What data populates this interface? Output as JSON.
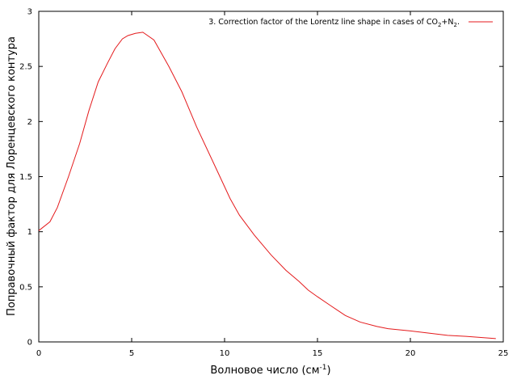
{
  "chart_data": {
    "type": "line",
    "title": "",
    "xlabel": "Волновое число (см",
    "xlabel_sup": "-1",
    "xlabel_suffix": ")",
    "ylabel": "Поправочный фактор для Лоренцевского контура",
    "xlim": [
      0,
      25
    ],
    "ylim": [
      0,
      3
    ],
    "x_ticks": [
      0,
      5,
      10,
      15,
      20,
      25
    ],
    "y_ticks": [
      0,
      0.5,
      1,
      1.5,
      2,
      2.5,
      3
    ],
    "grid": false,
    "legend_position": "top-right",
    "series": [
      {
        "name": "3. Correction factor of the Lorentz line shape in cases of CO2+N2.",
        "legend_parts": [
          "3. Correction factor of the Lorentz line shape in cases of CO",
          "2",
          "+N",
          "2",
          "."
        ],
        "color": "#e41a1c",
        "x": [
          0,
          0.6,
          1.0,
          1.6,
          2.2,
          2.7,
          3.2,
          3.7,
          4.1,
          4.5,
          4.8,
          5.2,
          5.6,
          6.2,
          7.0,
          7.7,
          8.5,
          9.5,
          10.3,
          10.8,
          11.6,
          12.5,
          13.3,
          14.0,
          14.5,
          15.0,
          15.7,
          16.5,
          17.3,
          18.2,
          18.8,
          20.0,
          21.0,
          22.0,
          23.0,
          24.6
        ],
        "y": [
          1.01,
          1.09,
          1.22,
          1.5,
          1.8,
          2.1,
          2.36,
          2.53,
          2.66,
          2.75,
          2.78,
          2.8,
          2.81,
          2.74,
          2.5,
          2.27,
          1.95,
          1.59,
          1.3,
          1.15,
          0.97,
          0.79,
          0.65,
          0.55,
          0.47,
          0.41,
          0.33,
          0.24,
          0.18,
          0.14,
          0.12,
          0.1,
          0.08,
          0.06,
          0.05,
          0.03
        ]
      }
    ]
  }
}
